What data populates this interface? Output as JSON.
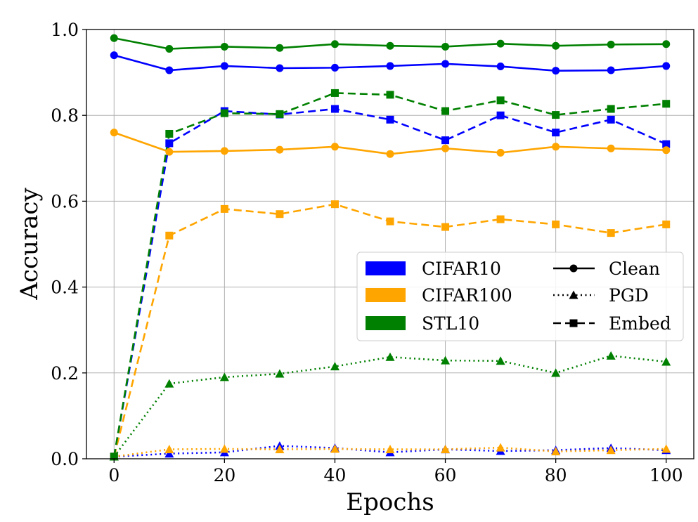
{
  "chart_data": {
    "type": "line",
    "xlabel": "Epochs",
    "ylabel": "Accuracy",
    "xlim": [
      -5,
      105
    ],
    "ylim": [
      0.0,
      1.0
    ],
    "xticks": [
      "0",
      "20",
      "40",
      "60",
      "80",
      "100"
    ],
    "yticks": [
      "0.0",
      "0.2",
      "0.4",
      "0.6",
      "0.8",
      "1.0"
    ],
    "grid": true,
    "legend_placement": "center-right",
    "x": [
      0,
      10,
      20,
      30,
      40,
      50,
      60,
      70,
      80,
      90,
      100
    ],
    "datasets": [
      {
        "name": "CIFAR10",
        "color": "#0000ff"
      },
      {
        "name": "CIFAR100",
        "color": "#ffa500"
      },
      {
        "name": "STL10",
        "color": "#008000"
      }
    ],
    "metrics": [
      {
        "name": "Clean",
        "line_style": "solid",
        "marker": "circle"
      },
      {
        "name": "PGD",
        "line_style": "dotted",
        "marker": "triangle"
      },
      {
        "name": "Embed",
        "line_style": "dashed",
        "marker": "square"
      }
    ],
    "series": [
      {
        "dataset": "CIFAR10",
        "metric": "Clean",
        "values": [
          0.94,
          0.905,
          0.915,
          0.91,
          0.911,
          0.915,
          0.92,
          0.914,
          0.904,
          0.905,
          0.915
        ]
      },
      {
        "dataset": "CIFAR10",
        "metric": "PGD",
        "values": [
          0.005,
          0.012,
          0.015,
          0.03,
          0.025,
          0.015,
          0.022,
          0.018,
          0.02,
          0.025,
          0.02
        ]
      },
      {
        "dataset": "CIFAR10",
        "metric": "Embed",
        "values": [
          0.005,
          0.735,
          0.81,
          0.802,
          0.815,
          0.79,
          0.742,
          0.8,
          0.76,
          0.79,
          0.733
        ]
      },
      {
        "dataset": "CIFAR100",
        "metric": "Clean",
        "values": [
          0.76,
          0.715,
          0.717,
          0.72,
          0.727,
          0.71,
          0.723,
          0.713,
          0.727,
          0.723,
          0.719
        ]
      },
      {
        "dataset": "CIFAR100",
        "metric": "PGD",
        "values": [
          0.005,
          0.022,
          0.023,
          0.022,
          0.023,
          0.022,
          0.022,
          0.026,
          0.017,
          0.02,
          0.023
        ]
      },
      {
        "dataset": "CIFAR100",
        "metric": "Embed",
        "values": [
          0.005,
          0.52,
          0.582,
          0.57,
          0.593,
          0.553,
          0.54,
          0.558,
          0.546,
          0.526,
          0.546
        ]
      },
      {
        "dataset": "STL10",
        "metric": "Clean",
        "values": [
          0.98,
          0.955,
          0.96,
          0.957,
          0.966,
          0.962,
          0.96,
          0.967,
          0.962,
          0.965,
          0.966
        ]
      },
      {
        "dataset": "STL10",
        "metric": "PGD",
        "values": [
          0.005,
          0.175,
          0.19,
          0.198,
          0.215,
          0.237,
          0.229,
          0.228,
          0.2,
          0.24,
          0.226
        ]
      },
      {
        "dataset": "STL10",
        "metric": "Embed",
        "values": [
          0.005,
          0.757,
          0.805,
          0.803,
          0.852,
          0.848,
          0.81,
          0.835,
          0.801,
          0.815,
          0.827
        ]
      }
    ]
  }
}
